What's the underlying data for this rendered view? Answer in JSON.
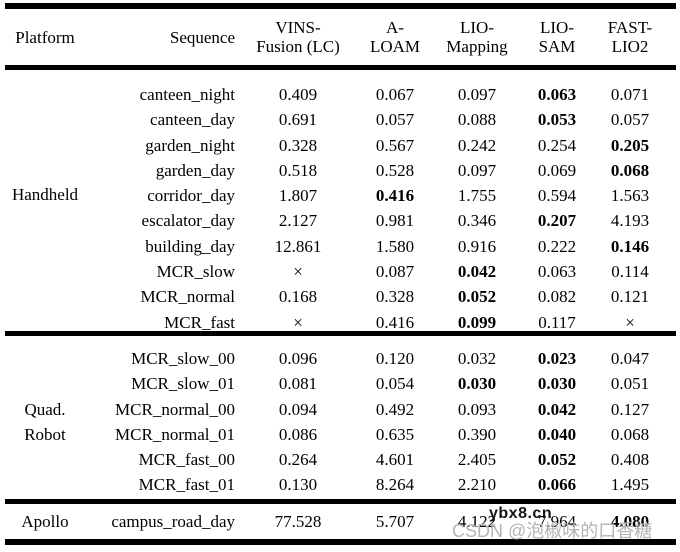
{
  "header": {
    "platform": "Platform",
    "sequence": "Sequence",
    "methods": [
      {
        "line1": "VINS-",
        "line2": "Fusion (LC)"
      },
      {
        "line1": "A-",
        "line2": "LOAM"
      },
      {
        "line1": "LIO-",
        "line2": "Mapping"
      },
      {
        "line1": "LIO-",
        "line2": "SAM"
      },
      {
        "line1": "FAST-",
        "line2": "LIO2"
      }
    ]
  },
  "failure_symbol": "×",
  "sections": [
    {
      "platform_lines": [
        "Handheld"
      ],
      "rows": [
        {
          "sequence": "canteen_night",
          "values": [
            "0.409",
            "0.067",
            "0.097",
            "0.063",
            "0.071"
          ],
          "bold": [
            3
          ]
        },
        {
          "sequence": "canteen_day",
          "values": [
            "0.691",
            "0.057",
            "0.088",
            "0.053",
            "0.057"
          ],
          "bold": [
            3
          ]
        },
        {
          "sequence": "garden_night",
          "values": [
            "0.328",
            "0.567",
            "0.242",
            "0.254",
            "0.205"
          ],
          "bold": [
            4
          ]
        },
        {
          "sequence": "garden_day",
          "values": [
            "0.518",
            "0.528",
            "0.097",
            "0.069",
            "0.068"
          ],
          "bold": [
            4
          ]
        },
        {
          "sequence": "corridor_day",
          "values": [
            "1.807",
            "0.416",
            "1.755",
            "0.594",
            "1.563"
          ],
          "bold": [
            1
          ]
        },
        {
          "sequence": "escalator_day",
          "values": [
            "2.127",
            "0.981",
            "0.346",
            "0.207",
            "4.193"
          ],
          "bold": [
            3
          ]
        },
        {
          "sequence": "building_day",
          "values": [
            "12.861",
            "1.580",
            "0.916",
            "0.222",
            "0.146"
          ],
          "bold": [
            4
          ]
        },
        {
          "sequence": "MCR_slow",
          "values": [
            "×",
            "0.087",
            "0.042",
            "0.063",
            "0.114"
          ],
          "bold": [
            2
          ]
        },
        {
          "sequence": "MCR_normal",
          "values": [
            "0.168",
            "0.328",
            "0.052",
            "0.082",
            "0.121"
          ],
          "bold": [
            2
          ]
        },
        {
          "sequence": "MCR_fast",
          "values": [
            "×",
            "0.416",
            "0.099",
            "0.117",
            "×"
          ],
          "bold": [
            2
          ]
        }
      ]
    },
    {
      "platform_lines": [
        "Quad.",
        "Robot"
      ],
      "rows": [
        {
          "sequence": "MCR_slow_00",
          "values": [
            "0.096",
            "0.120",
            "0.032",
            "0.023",
            "0.047"
          ],
          "bold": [
            3
          ]
        },
        {
          "sequence": "MCR_slow_01",
          "values": [
            "0.081",
            "0.054",
            "0.030",
            "0.030",
            "0.051"
          ],
          "bold": [
            2,
            3
          ]
        },
        {
          "sequence": "MCR_normal_00",
          "values": [
            "0.094",
            "0.492",
            "0.093",
            "0.042",
            "0.127"
          ],
          "bold": [
            3
          ]
        },
        {
          "sequence": "MCR_normal_01",
          "values": [
            "0.086",
            "0.635",
            "0.390",
            "0.040",
            "0.068"
          ],
          "bold": [
            3
          ]
        },
        {
          "sequence": "MCR_fast_00",
          "values": [
            "0.264",
            "4.601",
            "2.405",
            "0.052",
            "0.408"
          ],
          "bold": [
            3
          ]
        },
        {
          "sequence": "MCR_fast_01",
          "values": [
            "0.130",
            "8.264",
            "2.210",
            "0.066",
            "1.495"
          ],
          "bold": [
            3
          ]
        }
      ]
    },
    {
      "platform_lines": [
        "Apollo"
      ],
      "rows": [
        {
          "sequence": "campus_road_day",
          "values": [
            "77.528",
            "5.707",
            "4.122",
            "7.964",
            "4.080"
          ],
          "bold": [
            4
          ]
        }
      ]
    }
  ],
  "watermarks": {
    "overlay_url": "ybx8.cn",
    "csdn": "CSDN @泡椒味的口香糖"
  },
  "colors": {
    "background": "#ffffff",
    "text": "#000000",
    "rule": "#000000",
    "watermark_dark": "#141414",
    "watermark_grey": "#b4b4b4"
  }
}
